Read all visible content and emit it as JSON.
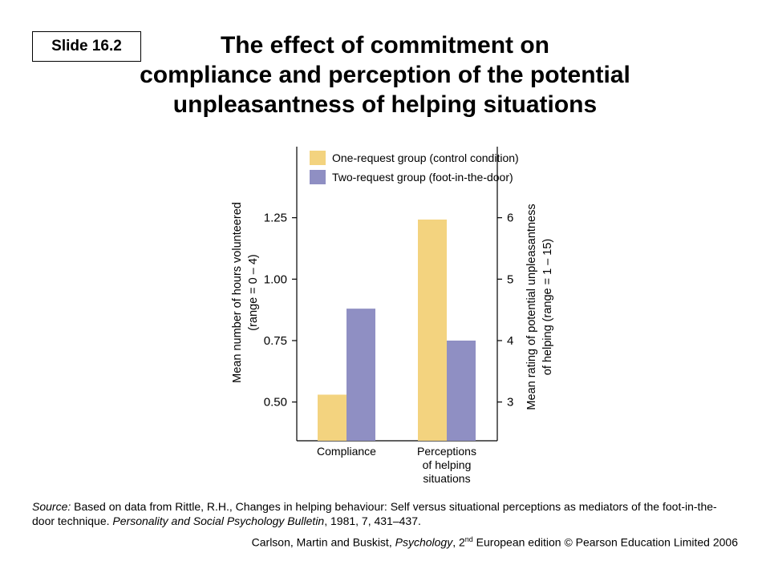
{
  "slide_label": "Slide 16.2",
  "title_lines": [
    "The effect of commitment on",
    "compliance and perception of the potential",
    "unpleasantness of helping situations"
  ],
  "colors": {
    "one_request": "#f3d37f",
    "two_request": "#8f8fc3",
    "axis": "#000000"
  },
  "chart_data": {
    "type": "bar",
    "categories": [
      {
        "lines": [
          "Compliance"
        ]
      },
      {
        "lines": [
          "Perceptions",
          "of helping",
          "situations"
        ]
      }
    ],
    "series": [
      {
        "name": "One-request group (control condition)",
        "color": "#f3d37f"
      },
      {
        "name": "Two-request group (foot-in-the-door)",
        "color": "#8f8fc3"
      }
    ],
    "left_axis": {
      "label_lines": [
        "Mean number of hours volunteered",
        "(range = 0 – 4)"
      ],
      "ticks": [
        "0.50",
        "0.75",
        "1.00",
        "1.25"
      ],
      "ylim": [
        0.375,
        1.5
      ]
    },
    "right_axis": {
      "label_lines": [
        "Mean rating of potential unpleasantness",
        "of helping (range = 1 – 15)"
      ],
      "ticks": [
        "3",
        "4",
        "5",
        "6"
      ],
      "ylim": [
        2.5,
        7.0
      ]
    },
    "values": {
      "compliance": {
        "one_request": 0.53,
        "two_request": 0.88,
        "axis": "left"
      },
      "perceptions": {
        "one_request": 5.97,
        "two_request": 4.0,
        "axis": "right"
      }
    },
    "legend_position": "top",
    "grid": false
  },
  "source": {
    "prefix": "Source:",
    "text": " Based on data from Rittle, R.H., Changes in helping behaviour: Self versus situational perceptions as mediators of the foot-in-the-door technique. ",
    "journal": "Personality and Social Psychology Bulletin",
    "citation": ", 1981, 7, 431–437."
  },
  "credit": {
    "authors": "Carlson, Martin and Buskist, ",
    "book": "Psychology",
    "edition_pre": ", 2",
    "edition_sup": "nd",
    "edition_post": " European edition © Pearson Education Limited 2006"
  }
}
